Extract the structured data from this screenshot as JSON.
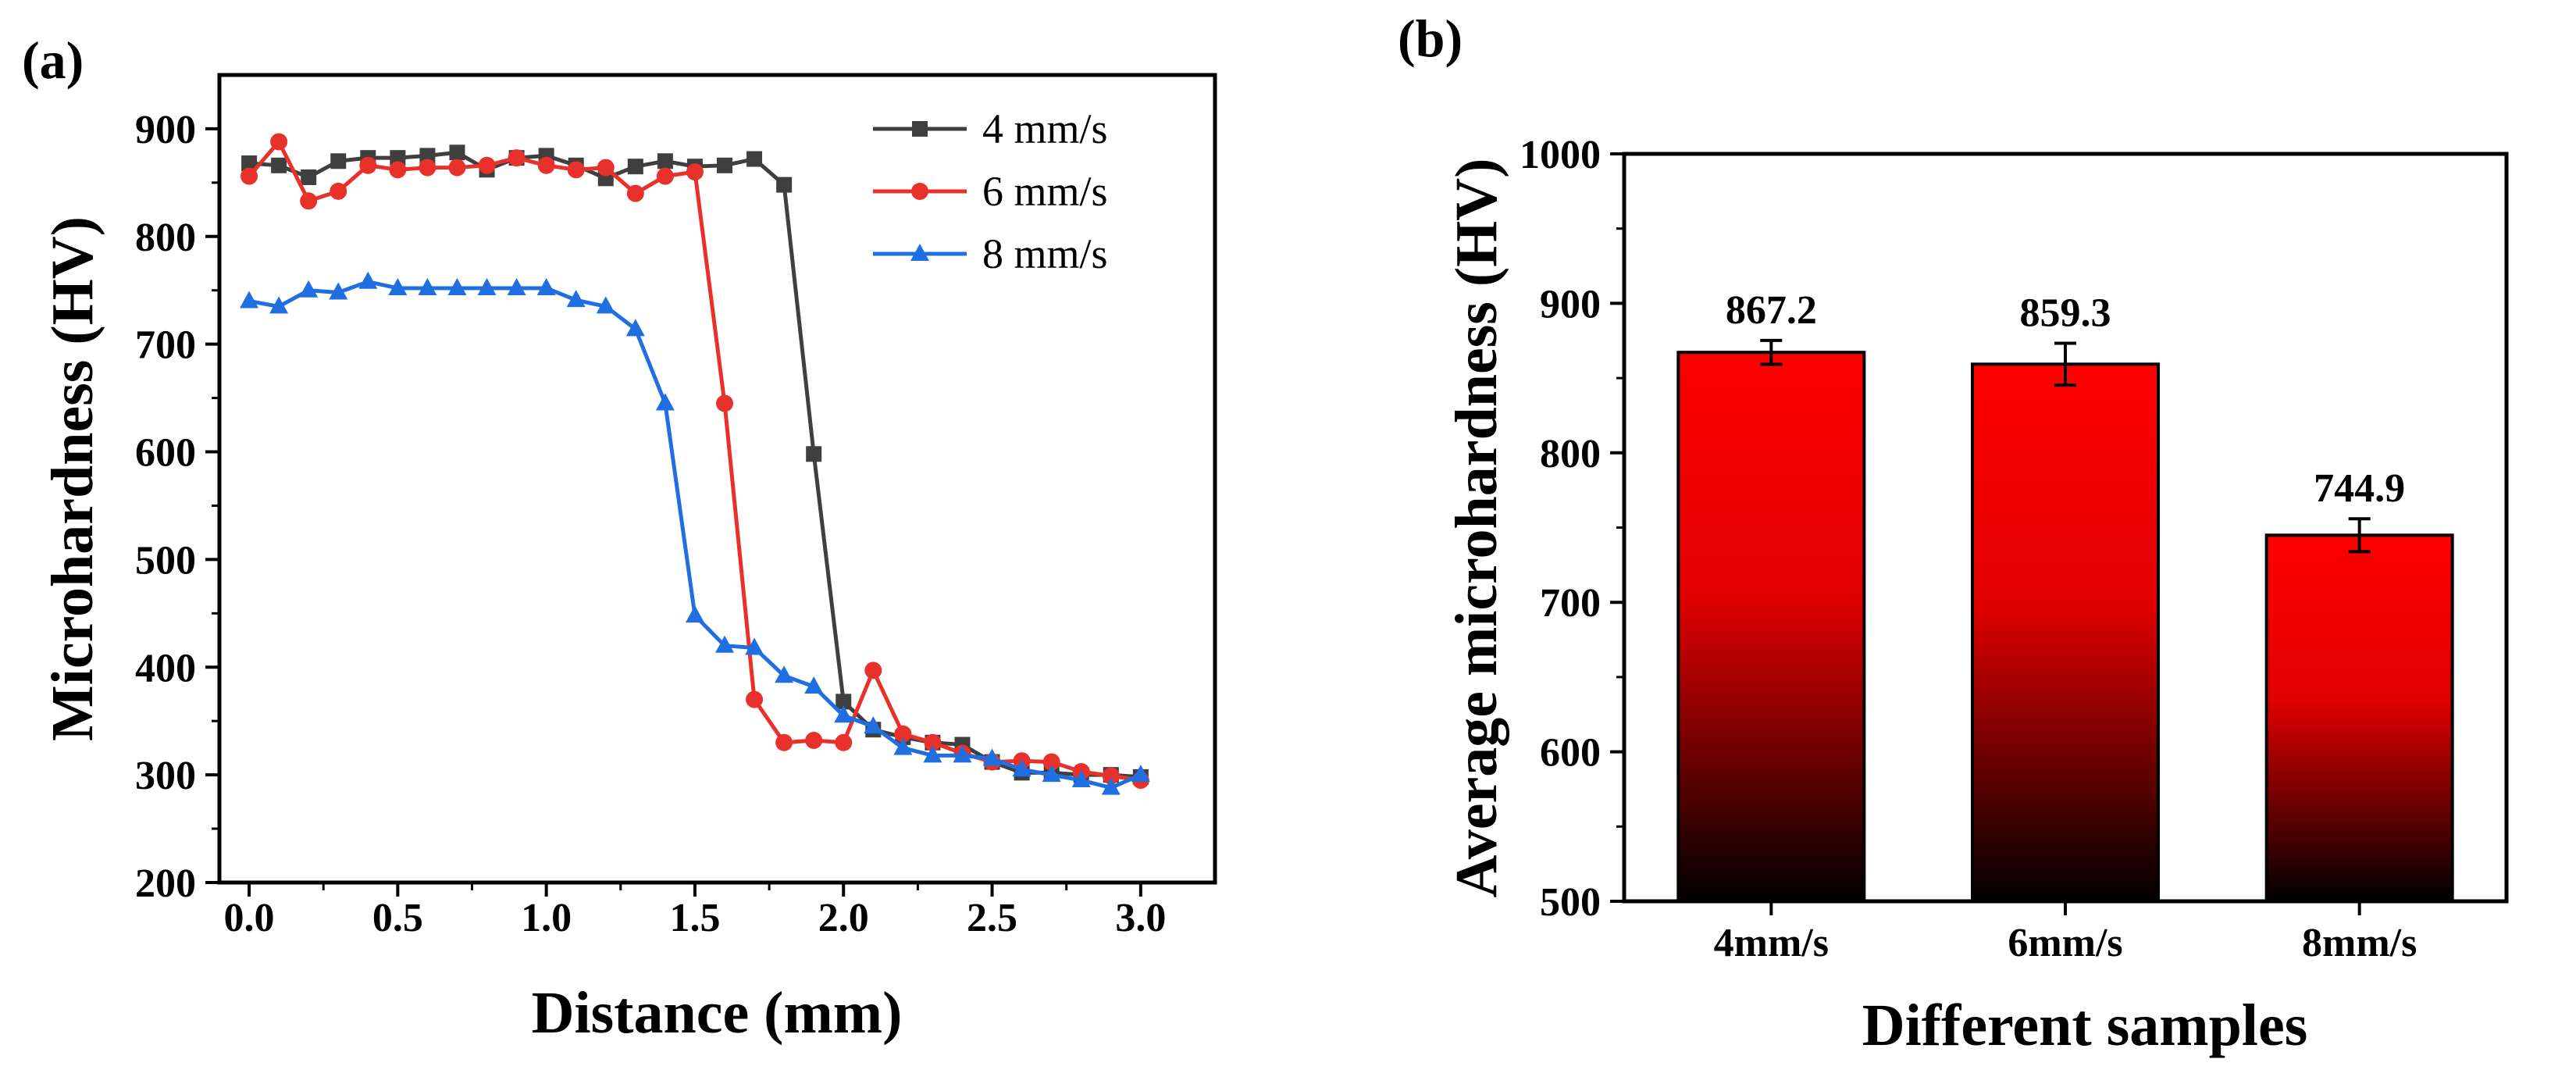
{
  "chart_data": [
    {
      "panel": "(a)",
      "type": "line",
      "xlabel": "Distance (mm)",
      "ylabel": "Microhardness (HV)",
      "xlim": [
        -0.1,
        3.25
      ],
      "ylim": [
        200,
        950
      ],
      "xticks": [
        0.0,
        0.5,
        1.0,
        1.5,
        2.0,
        2.5,
        3.0
      ],
      "xtick_labels": [
        "0.0",
        "0.5",
        "1.0",
        "1.5",
        "2.0",
        "2.5",
        "3.0"
      ],
      "yticks": [
        200,
        300,
        400,
        500,
        600,
        700,
        800,
        900
      ],
      "ytick_labels": [
        "200",
        "300",
        "400",
        "500",
        "600",
        "700",
        "800",
        "900"
      ],
      "legend_position": "top-right",
      "x": [
        0.0,
        0.1,
        0.2,
        0.3,
        0.4,
        0.5,
        0.6,
        0.7,
        0.8,
        0.9,
        1.0,
        1.1,
        1.2,
        1.3,
        1.4,
        1.5,
        1.6,
        1.7,
        1.8,
        1.9,
        2.0,
        2.1,
        2.2,
        2.3,
        2.4,
        2.5,
        2.6,
        2.7,
        2.8,
        2.9,
        3.0
      ],
      "series": [
        {
          "name": "4 mm/s",
          "color": "#3f3f3f",
          "marker": "square",
          "values": [
            868,
            866,
            855,
            870,
            873,
            873,
            875,
            878,
            862,
            873,
            875,
            866,
            854,
            865,
            870,
            865,
            866,
            872,
            848,
            598,
            368,
            342,
            335,
            330,
            328,
            312,
            302,
            302,
            300,
            300,
            298
          ]
        },
        {
          "name": "6 mm/s",
          "color": "#e8312b",
          "marker": "circle",
          "values": [
            856,
            888,
            833,
            842,
            866,
            862,
            864,
            864,
            866,
            873,
            866,
            862,
            864,
            840,
            856,
            860,
            645,
            370,
            330,
            332,
            330,
            397,
            338,
            330,
            320,
            312,
            313,
            312,
            303,
            299,
            295
          ]
        },
        {
          "name": "8 mm/s",
          "color": "#1f6fe0",
          "marker": "triangle",
          "values": [
            740,
            735,
            750,
            748,
            758,
            752,
            752,
            752,
            752,
            752,
            752,
            741,
            735,
            714,
            645,
            448,
            420,
            418,
            392,
            382,
            355,
            345,
            325,
            318,
            318,
            315,
            305,
            300,
            295,
            288,
            300
          ]
        }
      ]
    },
    {
      "panel": "(b)",
      "type": "bar",
      "xlabel": "Different samples",
      "ylabel": "Average microhardness (HV)",
      "ylim": [
        500,
        1000
      ],
      "yticks": [
        500,
        600,
        700,
        800,
        900,
        1000
      ],
      "ytick_labels": [
        "500",
        "600",
        "700",
        "800",
        "900",
        "1000"
      ],
      "categories": [
        "4mm/s",
        "6mm/s",
        "8mm/s"
      ],
      "values": [
        867.2,
        859.3,
        744.9
      ],
      "value_labels": [
        "867.2",
        "859.3",
        "744.9"
      ],
      "errors": [
        8,
        14,
        11
      ],
      "bar_gradient": [
        "#ff0000",
        "#e00000",
        "#000000"
      ]
    }
  ]
}
